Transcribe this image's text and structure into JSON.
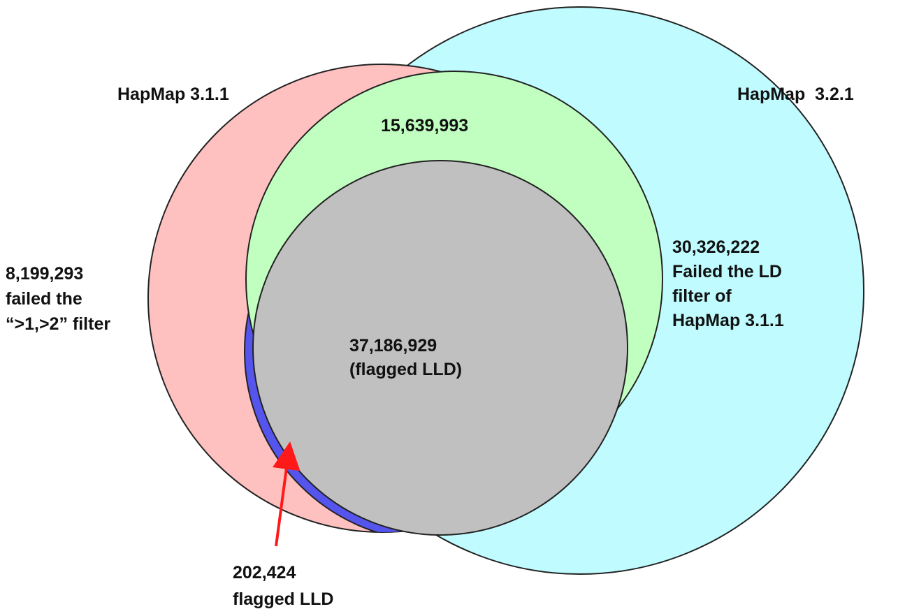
{
  "sets": [
    {
      "label": "HapMap 3.1.1"
    },
    {
      "label": "HapMap  3.2.1"
    }
  ],
  "regions": {
    "green": {
      "lines": [
        "15,639,993"
      ]
    },
    "gray": {
      "lines": [
        "37,186,929",
        "(flagged LLD)"
      ]
    },
    "pink": {
      "lines": [
        "8,199,293",
        "failed the",
        "“>1,>2” filter"
      ]
    },
    "cyan": {
      "lines": [
        "30,326,222",
        "Failed the LD",
        "filter of",
        "HapMap 3.1.1"
      ]
    },
    "blue": {
      "lines": [
        "202,424",
        "flagged LLD"
      ]
    }
  }
}
